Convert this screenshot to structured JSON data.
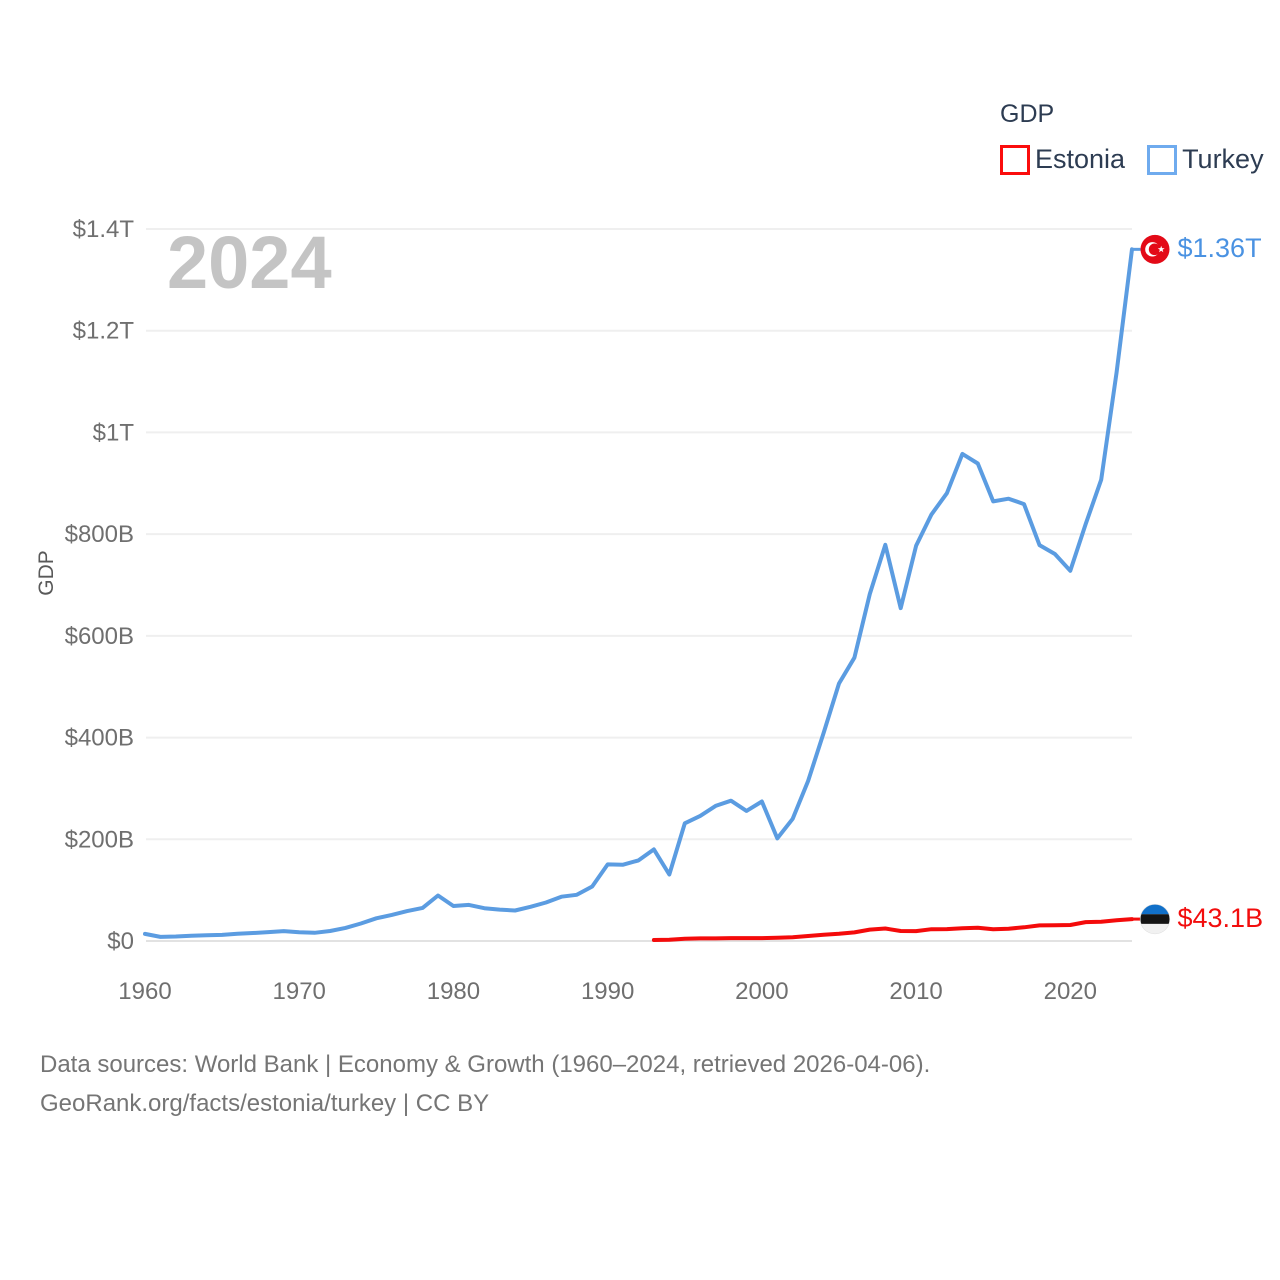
{
  "watermark": "2024",
  "legend": {
    "title": "GDP",
    "items": [
      {
        "label": "Estonia",
        "swatch_color": "#fb0d0d"
      },
      {
        "label": "Turkey",
        "swatch_color": "#6fabee"
      }
    ]
  },
  "axes": {
    "y": {
      "title": "GDP",
      "ticks": [
        {
          "label": "$0",
          "value": 0
        },
        {
          "label": "$200B",
          "value": 200
        },
        {
          "label": "$400B",
          "value": 400
        },
        {
          "label": "$600B",
          "value": 600
        },
        {
          "label": "$800B",
          "value": 800
        },
        {
          "label": "$1T",
          "value": 1000
        },
        {
          "label": "$1.2T",
          "value": 1200
        },
        {
          "label": "$1.4T",
          "value": 1400
        }
      ]
    },
    "x": {
      "ticks": [
        {
          "label": "1960",
          "year": 1960
        },
        {
          "label": "1970",
          "year": 1970
        },
        {
          "label": "1980",
          "year": 1980
        },
        {
          "label": "1990",
          "year": 1990
        },
        {
          "label": "2000",
          "year": 2000
        },
        {
          "label": "2010",
          "year": 2010
        },
        {
          "label": "2020",
          "year": 2020
        }
      ]
    }
  },
  "end_labels": {
    "turkey": {
      "text": "$1.36T",
      "color": "#4a92e2",
      "flag": "turkey-flag"
    },
    "estonia": {
      "text": "$43.1B",
      "color": "#f20d0d",
      "flag": "estonia-flag"
    }
  },
  "footer": {
    "line1": "Data sources: World Bank | Economy & Growth (1960–2024, retrieved 2026-04-06).",
    "line2": "GeoRank.org/facts/estonia/turkey | CC BY"
  },
  "colors": {
    "turkey_line": "#5b9ce1",
    "estonia_line": "#f40b0b",
    "gridline": "#efefef",
    "gridline_zero": "#e2e2e2",
    "tick_text": "#6f6f6f",
    "turkey_flag_red": "#e30a17",
    "estonia_flag_blue": "#1170c9",
    "estonia_flag_black": "#141414",
    "estonia_flag_white": "#f1f1f1"
  },
  "chart_data": {
    "type": "line",
    "title": "GDP",
    "xlabel": "",
    "ylabel": "GDP",
    "x_range": [
      1960,
      2024
    ],
    "ylim_billions_usd": [
      0,
      1400
    ],
    "grid": true,
    "legend_position": "top-right",
    "series": [
      {
        "name": "Turkey",
        "color": "#5b9ce1",
        "start_year": 1960,
        "end_value_label": "$1.36T",
        "values_billions_usd": [
          14,
          8,
          8.9,
          10.4,
          11.2,
          11.9,
          14.1,
          15.7,
          17.5,
          19.5,
          17.1,
          16.2,
          19.6,
          25.7,
          34.5,
          44.6,
          51.3,
          58.7,
          65.1,
          89.4,
          68.8,
          71,
          64.5,
          61.7,
          60,
          67.2,
          75.7,
          87.2,
          90.9,
          107.1,
          150.7,
          150,
          158.5,
          180.2,
          130.7,
          231.5,
          246,
          265.7,
          275.8,
          255.9,
          274.3,
          201.8,
          240.2,
          314.6,
          408.9,
          506.3,
          557.1,
          682.3,
          779,
          654.6,
          777,
          838.8,
          880.6,
          957.8,
          938.9,
          864.3,
          869.7,
          859,
          778.5,
          760.9,
          728,
          819.9,
          907.1,
          1118.3,
          1360
        ]
      },
      {
        "name": "Estonia",
        "color": "#f40b0b",
        "start_year": 1993,
        "end_value_label": "$43.1B",
        "values_billions_usd": [
          2,
          2.4,
          4.5,
          5.1,
          5.1,
          5.7,
          5.7,
          5.7,
          6.3,
          7.4,
          9.9,
          12.1,
          14.1,
          17,
          22.4,
          24.5,
          19.7,
          19.5,
          23.2,
          23.4,
          25.1,
          26.2,
          23.1,
          24.1,
          26.9,
          30.6,
          31.1,
          31.4,
          37.2,
          38,
          40.8,
          43.1
        ]
      }
    ]
  }
}
